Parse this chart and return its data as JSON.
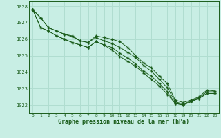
{
  "title": "Graphe pression niveau de la mer (hPa)",
  "background_color": "#c8eee4",
  "grid_color": "#b0ddd0",
  "line_color": "#1a5c1a",
  "marker_color": "#1a5c1a",
  "xlim": [
    -0.5,
    23.5
  ],
  "ylim": [
    1021.5,
    1028.3
  ],
  "yticks": [
    1022,
    1023,
    1024,
    1025,
    1026,
    1027,
    1028
  ],
  "xticks": [
    0,
    1,
    2,
    3,
    4,
    5,
    6,
    7,
    8,
    9,
    10,
    11,
    12,
    13,
    14,
    15,
    16,
    17,
    18,
    19,
    20,
    21,
    22,
    23
  ],
  "series": [
    [
      1027.8,
      1027.3,
      1026.7,
      1026.5,
      1026.3,
      1026.2,
      1025.9,
      1025.8,
      1026.2,
      1026.1,
      1026.0,
      1025.85,
      1025.5,
      1025.0,
      1024.55,
      1024.25,
      1023.75,
      1023.3,
      1022.3,
      1022.15,
      1022.3,
      1022.5,
      1022.9,
      1022.85
    ],
    [
      1027.8,
      1027.3,
      1026.7,
      1026.5,
      1026.3,
      1026.15,
      1025.9,
      1025.8,
      1026.1,
      1025.9,
      1025.75,
      1025.5,
      1025.2,
      1024.9,
      1024.4,
      1024.05,
      1023.55,
      1023.05,
      1022.2,
      1022.05,
      1022.25,
      1022.45,
      1022.8,
      1022.8
    ],
    [
      1027.8,
      1026.7,
      1026.5,
      1026.2,
      1026.0,
      1025.8,
      1025.65,
      1025.5,
      1025.85,
      1025.65,
      1025.5,
      1025.15,
      1024.85,
      1024.5,
      1024.05,
      1023.75,
      1023.3,
      1022.8,
      1022.1,
      1022.0,
      1022.2,
      1022.4,
      1022.7,
      1022.7
    ],
    [
      1027.8,
      1026.7,
      1026.5,
      1026.2,
      1026.0,
      1025.8,
      1025.65,
      1025.5,
      1025.85,
      1025.65,
      1025.35,
      1024.95,
      1024.65,
      1024.35,
      1023.95,
      1023.55,
      1023.15,
      1022.65,
      1022.1,
      1022.0,
      1022.2,
      1022.4,
      1022.7,
      1022.7
    ]
  ],
  "ylabel_color": "#1a5c1a",
  "xlabel_color": "#1a5c1a",
  "tick_color": "#1a5c1a",
  "spine_color": "#1a5c1a"
}
